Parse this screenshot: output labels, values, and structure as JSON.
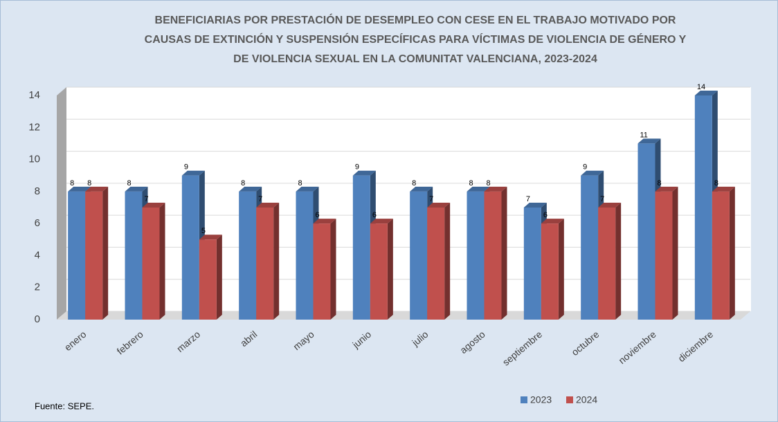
{
  "chart_data": {
    "type": "bar3d",
    "title": [
      "BENEFICIARIAS POR PRESTACIÓN DE DESEMPLEO CON CESE EN EL TRABAJO MOTIVADO POR",
      "CAUSAS DE EXTINCIÓN Y SUSPENSIÓN ESPECÍFICAS PARA VÍCTIMAS DE VIOLENCIA DE GÉNERO Y",
      "DE VIOLENCIA SEXUAL EN LA COMUNITAT VALENCIANA, 2023-2024"
    ],
    "categories": [
      "enero",
      "febrero",
      "marzo",
      "abril",
      "mayo",
      "junio",
      "julio",
      "agosto",
      "septiembre",
      "octubre",
      "noviembre",
      "diciembre"
    ],
    "series": [
      {
        "name": "2023",
        "color": "#4f81bd",
        "values": [
          8,
          8,
          9,
          8,
          8,
          9,
          8,
          8,
          7,
          9,
          11,
          14
        ]
      },
      {
        "name": "2024",
        "color": "#c0504d",
        "values": [
          8,
          7,
          5,
          7,
          6,
          6,
          7,
          8,
          6,
          7,
          8,
          8
        ]
      }
    ],
    "ylim": [
      0,
      14
    ],
    "yticks": [
      0,
      2,
      4,
      6,
      8,
      10,
      12,
      14
    ],
    "grid": true,
    "legend": "bottom",
    "source": "Fuente: SEPE."
  }
}
